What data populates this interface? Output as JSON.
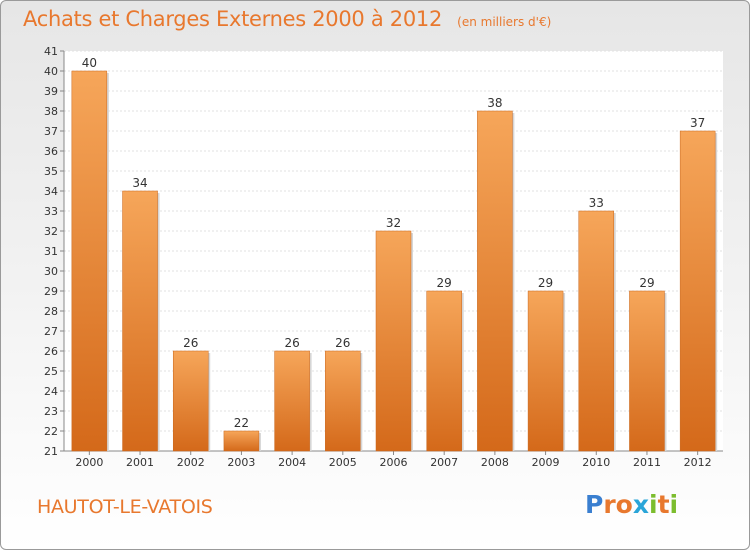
{
  "header": {
    "title": "Achats et Charges Externes 2000 à 2012",
    "subtitle": "(en milliers d'€)"
  },
  "footer": {
    "commune": "HAUTOT-LE-VATOIS",
    "logo_text": "Proxiti",
    "logo_colors": [
      "#3a7fd0",
      "#e8782e",
      "#e8782e",
      "#2aa5d8",
      "#7cbd2e",
      "#e8782e",
      "#7cbd2e"
    ]
  },
  "chart_data": {
    "type": "bar",
    "title": "Achats et Charges Externes 2000 à 2012",
    "subtitle": "(en milliers d'€)",
    "categories": [
      "2000",
      "2001",
      "2002",
      "2003",
      "2004",
      "2005",
      "2006",
      "2007",
      "2008",
      "2009",
      "2010",
      "2011",
      "2012"
    ],
    "values": [
      40,
      34,
      26,
      22,
      26,
      26,
      32,
      29,
      38,
      29,
      33,
      29,
      37
    ],
    "ylim": [
      21,
      41
    ],
    "yticks": [
      21,
      22,
      23,
      24,
      25,
      26,
      27,
      28,
      29,
      30,
      31,
      32,
      33,
      34,
      35,
      36,
      37,
      38,
      39,
      40,
      41
    ],
    "grid": true,
    "bar_color": "#f0913c",
    "bar_dark": "#d4691a",
    "bar_light": "#f6a65a"
  }
}
